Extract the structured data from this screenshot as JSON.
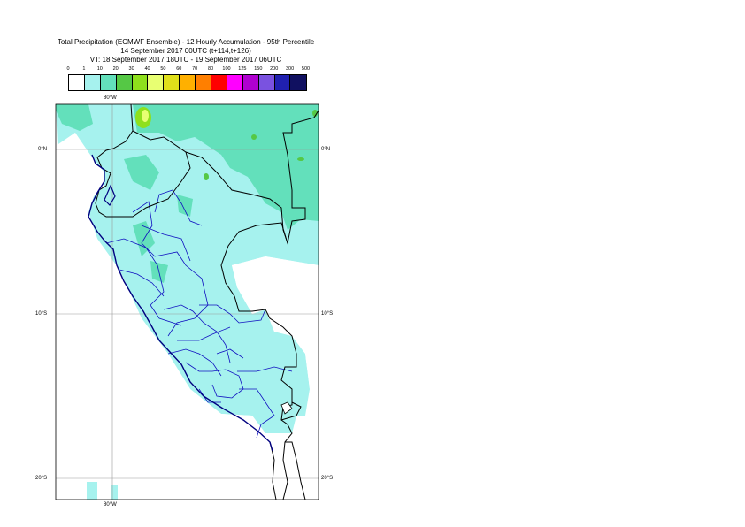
{
  "title": {
    "line1": "Total Precipitation (ECMWF Ensemble) - 12 Hourly Accumulation - 95th Percentile",
    "line2": "14 September 2017 00UTC (t+114,t+126)",
    "line3": "VT: 18 September 2017 18UTC - 19 September 2017 06UTC"
  },
  "legend": {
    "levels": [
      "0",
      "1",
      "10",
      "20",
      "30",
      "40",
      "50",
      "60",
      "70",
      "80",
      "100",
      "125",
      "150",
      "200",
      "300",
      "500"
    ],
    "colors": [
      "#ffffff",
      "#a6f2ee",
      "#63e0bb",
      "#55c845",
      "#8fe01c",
      "#e8ff72",
      "#e0e01a",
      "#ffb000",
      "#ff7f00",
      "#ff0000",
      "#ff00ff",
      "#b000d0",
      "#7a52e0",
      "#2020b0",
      "#101060"
    ]
  },
  "axes": {
    "lon_top": "80°W",
    "lon_bottom": "80°W",
    "lat_left": [
      "0°N",
      "10°S",
      "20°S"
    ],
    "lat_right": [
      "0°N",
      "10°S",
      "20°S"
    ]
  },
  "map": {
    "colors": {
      "light": "#a6f2ee",
      "mid": "#63e0bb",
      "green": "#8fe01c",
      "yellow": "#e8ff72",
      "border": "#000000",
      "regions": "#1010c0",
      "coast": "#000080"
    }
  }
}
